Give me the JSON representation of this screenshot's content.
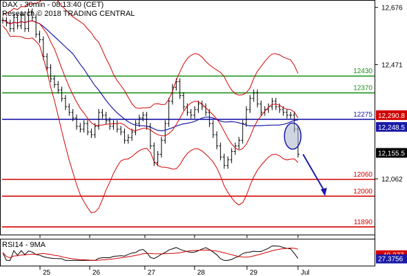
{
  "header": {
    "line1": "DAX - 30min - 08:13:40 (CET)",
    "line2": "Research © 2018 TRADING CENTRAL"
  },
  "chart_data": {
    "type": "candlestick",
    "instrument": "DAX",
    "timeframe": "30min",
    "y_ticks": [
      "12,676",
      "12,471",
      "12,062"
    ],
    "y_range": [
      11850,
      12690
    ],
    "levels": [
      {
        "value": 12430,
        "label": "12430",
        "color": "#1a8f1a"
      },
      {
        "value": 12370,
        "label": "12370",
        "color": "#1a8f1a"
      },
      {
        "value": 12275,
        "label": "12275",
        "color": "#1a1aa8"
      },
      {
        "value": 12060,
        "label": "12060",
        "color": "#d40000"
      },
      {
        "value": 12000,
        "label": "12000",
        "color": "#d40000"
      },
      {
        "value": 11890,
        "label": "11890",
        "color": "#d40000"
      }
    ],
    "price_boxes": [
      {
        "label": "12,290.8",
        "value": 12290,
        "color": "#d40000"
      },
      {
        "label": "12,248.5",
        "value": 12248,
        "color": "#1a1aa8"
      },
      {
        "label": "12,155.5",
        "value": 12155,
        "color": "#000000"
      }
    ],
    "x_labels": [
      "25",
      "26",
      "27",
      "28",
      "29",
      "Jul"
    ],
    "close_series": [
      12630,
      12620,
      12600,
      12640,
      12610,
      12650,
      12600,
      12660,
      12640,
      12580,
      12560,
      12500,
      12460,
      12420,
      12400,
      12380,
      12350,
      12320,
      12300,
      12280,
      12250,
      12240,
      12260,
      12230,
      12220,
      12250,
      12300,
      12290,
      12270,
      12250,
      12260,
      12240,
      12230,
      12200,
      12210,
      12230,
      12260,
      12280,
      12290,
      12250,
      12180,
      12120,
      12150,
      12200,
      12260,
      12340,
      12390,
      12410,
      12360,
      12320,
      12300,
      12290,
      12310,
      12330,
      12320,
      12300,
      12260,
      12220,
      12180,
      12140,
      12110,
      12130,
      12160,
      12180,
      12200,
      12260,
      12310,
      12350,
      12370,
      12330,
      12300,
      12310,
      12320,
      12340,
      12320,
      12310,
      12300,
      12290,
      12290,
      12240,
      12150
    ],
    "rsi": {
      "label": "RSI14 - 9MA",
      "value_label": "40.277",
      "ma_label": "27.3756"
    }
  }
}
